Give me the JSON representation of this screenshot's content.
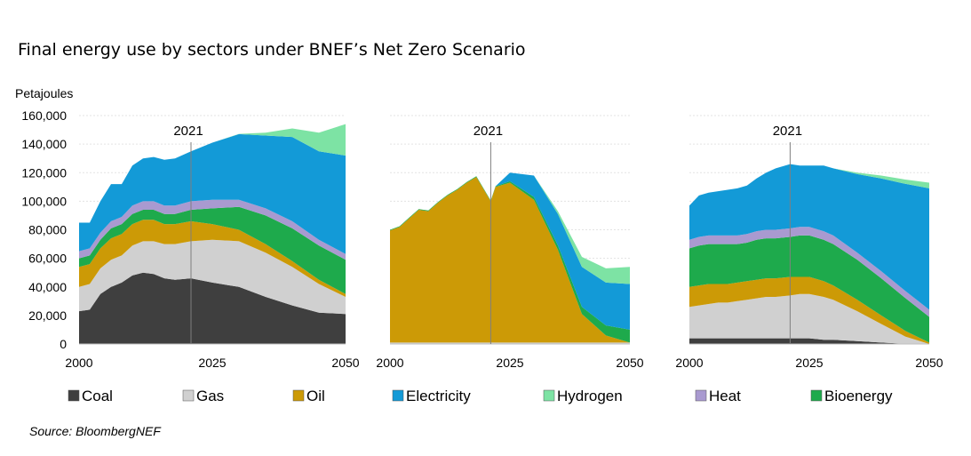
{
  "title": "Final energy use by sectors under BNEF’s Net Zero Scenario",
  "unit_label": "Petajoules",
  "source": "Source: BloombergNEF",
  "chart_data": {
    "type": "area",
    "stacked": true,
    "x_ticks": [
      "2000",
      "2025",
      "2050"
    ],
    "y_ticks": [
      "0",
      "20,000",
      "40,000",
      "60,000",
      "80,000",
      "100,000",
      "120,000",
      "140,000",
      "160,000"
    ],
    "ylim": [
      0,
      160000
    ],
    "xlim": [
      2000,
      2050
    ],
    "grid": true,
    "legend_position": "bottom",
    "series": [
      {
        "key": "coal",
        "name": "Coal",
        "color": "#3f3f3f"
      },
      {
        "key": "gas",
        "name": "Gas",
        "color": "#d0d0d0"
      },
      {
        "key": "oil",
        "name": "Oil",
        "color": "#cc9a06"
      },
      {
        "key": "bioenergy",
        "name": "Bioenergy",
        "color": "#1eaa4c"
      },
      {
        "key": "heat",
        "name": "Heat",
        "color": "#a99ad0"
      },
      {
        "key": "electricity",
        "name": "Electricity",
        "color": "#139ad7"
      },
      {
        "key": "hydrogen",
        "name": "Hydrogen",
        "color": "#7de3a4"
      }
    ],
    "legend_order": [
      "coal",
      "gas",
      "oil",
      "electricity",
      "hydrogen",
      "heat",
      "bioenergy"
    ],
    "panels": [
      {
        "year_marker": "2021",
        "x": [
          2000,
          2002,
          2004,
          2006,
          2008,
          2010,
          2012,
          2014,
          2016,
          2018,
          2021,
          2025,
          2030,
          2035,
          2040,
          2045,
          2050
        ],
        "values": {
          "coal": [
            23000,
            24000,
            35000,
            40000,
            43000,
            48000,
            50000,
            49000,
            46000,
            45000,
            46000,
            43000,
            40000,
            33000,
            27000,
            22000,
            21000
          ],
          "gas": [
            17000,
            18000,
            18000,
            19000,
            19000,
            21000,
            22000,
            23000,
            24000,
            25000,
            26000,
            30000,
            32000,
            31000,
            27000,
            20000,
            12000
          ],
          "oil": [
            14000,
            14000,
            14000,
            15000,
            15000,
            15000,
            15000,
            15000,
            14000,
            14000,
            14000,
            11000,
            8000,
            6000,
            4000,
            3000,
            2000
          ],
          "bioenergy": [
            6000,
            6000,
            6000,
            7000,
            7000,
            7000,
            7000,
            7000,
            7000,
            7000,
            8000,
            11000,
            16000,
            20000,
            23000,
            24000,
            24000
          ],
          "heat": [
            5000,
            5000,
            5000,
            5000,
            5000,
            6000,
            6000,
            6000,
            6000,
            6000,
            6000,
            6000,
            5000,
            5000,
            5000,
            4000,
            4000
          ],
          "electricity": [
            20000,
            18000,
            22000,
            26000,
            23000,
            28000,
            30000,
            31000,
            32000,
            33000,
            35000,
            40000,
            46000,
            51000,
            59000,
            62000,
            69000
          ],
          "hydrogen": [
            0,
            0,
            0,
            0,
            0,
            0,
            0,
            0,
            0,
            0,
            0,
            0,
            200,
            2000,
            6000,
            13000,
            22000
          ]
        }
      },
      {
        "year_marker": "2021",
        "x": [
          2000,
          2002,
          2004,
          2006,
          2008,
          2010,
          2012,
          2014,
          2016,
          2018,
          2021,
          2022,
          2025,
          2030,
          2035,
          2040,
          2045,
          2050
        ],
        "values": {
          "coal": [
            0,
            0,
            0,
            0,
            0,
            0,
            0,
            0,
            0,
            0,
            0,
            0,
            0,
            0,
            0,
            0,
            0,
            0
          ],
          "gas": [
            1000,
            1000,
            1000,
            1000,
            1000,
            1000,
            1000,
            1000,
            1000,
            1000,
            1000,
            1000,
            1000,
            1000,
            1000,
            1000,
            1000,
            1000
          ],
          "oil": [
            78500,
            81000,
            87000,
            93000,
            92000,
            98000,
            103000,
            107000,
            112000,
            116000,
            99000,
            109000,
            112000,
            100000,
            65000,
            20000,
            5000,
            0
          ],
          "bioenergy": [
            500,
            500,
            500,
            500,
            500,
            500,
            500,
            500,
            500,
            500,
            500,
            500,
            1000,
            2000,
            3000,
            5000,
            7000,
            9000
          ],
          "heat": [
            0,
            0,
            0,
            0,
            0,
            0,
            0,
            0,
            0,
            0,
            0,
            0,
            0,
            0,
            0,
            0,
            0,
            0
          ],
          "electricity": [
            0,
            0,
            0,
            0,
            0,
            0,
            0,
            0,
            0,
            0,
            0,
            0,
            6000,
            15000,
            22000,
            28000,
            30000,
            32000
          ],
          "hydrogen": [
            0,
            0,
            0,
            0,
            0,
            0,
            0,
            0,
            0,
            0,
            0,
            0,
            0,
            0,
            2000,
            7000,
            10000,
            12000
          ]
        }
      },
      {
        "year_marker": "2021",
        "x": [
          2000,
          2002,
          2004,
          2006,
          2008,
          2010,
          2012,
          2014,
          2016,
          2018,
          2021,
          2023,
          2025,
          2028,
          2030,
          2035,
          2040,
          2045,
          2050
        ],
        "values": {
          "coal": [
            4000,
            4000,
            4000,
            4000,
            4000,
            4000,
            4000,
            4000,
            4000,
            4000,
            4000,
            4000,
            4000,
            3000,
            3000,
            2000,
            1000,
            200,
            0
          ],
          "gas": [
            22000,
            23000,
            24000,
            25000,
            25000,
            26000,
            27000,
            28000,
            29000,
            29000,
            30000,
            31000,
            31000,
            30000,
            28000,
            21000,
            13000,
            5000,
            0
          ],
          "oil": [
            14000,
            14000,
            14000,
            13000,
            13000,
            13000,
            13000,
            13000,
            13000,
            13000,
            13000,
            12000,
            12000,
            11000,
            10000,
            8000,
            6000,
            4000,
            1000
          ],
          "bioenergy": [
            27000,
            28000,
            28000,
            28000,
            28000,
            27000,
            27000,
            28000,
            28000,
            28000,
            28000,
            29000,
            29000,
            29000,
            29000,
            28000,
            26000,
            23000,
            18000
          ],
          "heat": [
            6000,
            6000,
            6000,
            6000,
            6000,
            6000,
            6000,
            6000,
            6000,
            6000,
            6000,
            6000,
            6000,
            6000,
            6000,
            5000,
            5000,
            5000,
            5000
          ],
          "electricity": [
            24000,
            29000,
            30000,
            31000,
            32000,
            33000,
            34000,
            37000,
            40000,
            43000,
            45000,
            43000,
            43000,
            46000,
            47000,
            55000,
            65000,
            75000,
            85000
          ],
          "hydrogen": [
            0,
            0,
            0,
            0,
            0,
            0,
            0,
            0,
            0,
            0,
            0,
            0,
            0,
            0,
            0,
            1000,
            2000,
            3000,
            4000
          ]
        }
      }
    ]
  }
}
